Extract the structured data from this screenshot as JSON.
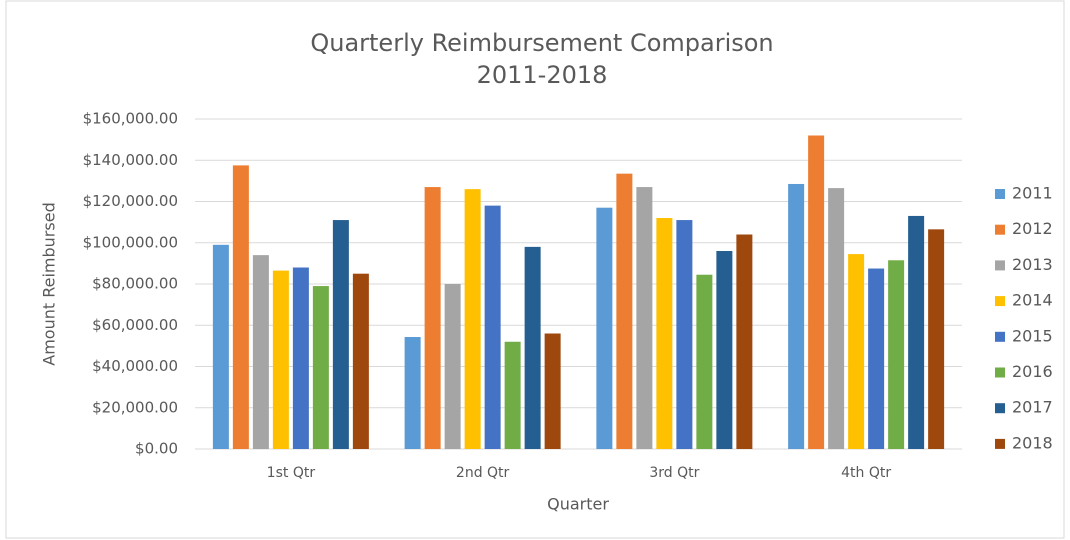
{
  "chart_data": {
    "type": "bar",
    "title": "Quarterly Reimbursement Comparison",
    "subtitle": "2011-2018",
    "x_label": "Quarter",
    "y_label": "Amount Reimbursed",
    "categories": [
      "1st Qtr",
      "2nd Qtr",
      "3rd Qtr",
      "4th Qtr"
    ],
    "series": [
      {
        "name": "2011",
        "color": "#5b9bd5",
        "values": [
          99000,
          54300,
          117000,
          128500
        ]
      },
      {
        "name": "2012",
        "color": "#ed7d31",
        "values": [
          137500,
          127000,
          133500,
          152000
        ]
      },
      {
        "name": "2013",
        "color": "#a5a5a5",
        "values": [
          94000,
          80000,
          127000,
          126500
        ]
      },
      {
        "name": "2014",
        "color": "#ffc000",
        "values": [
          86500,
          126000,
          112000,
          94500
        ]
      },
      {
        "name": "2015",
        "color": "#4472c4",
        "values": [
          88000,
          118000,
          111000,
          87500
        ]
      },
      {
        "name": "2016",
        "color": "#70ad47",
        "values": [
          79000,
          52000,
          84500,
          91500
        ]
      },
      {
        "name": "2017",
        "color": "#255e91",
        "values": [
          111000,
          98000,
          96000,
          113000
        ]
      },
      {
        "name": "2018",
        "color": "#9e480e",
        "values": [
          85000,
          56000,
          104000,
          106500
        ]
      }
    ],
    "ylim": [
      0,
      160000
    ],
    "yticks": [
      {
        "value": 0,
        "label": "$0.00"
      },
      {
        "value": 20000,
        "label": "$20,000.00"
      },
      {
        "value": 40000,
        "label": "$40,000.00"
      },
      {
        "value": 60000,
        "label": "$60,000.00"
      },
      {
        "value": 80000,
        "label": "$80,000.00"
      },
      {
        "value": 100000,
        "label": "$100,000.00"
      },
      {
        "value": 120000,
        "label": "$120,000.00"
      },
      {
        "value": 140000,
        "label": "$140,000.00"
      },
      {
        "value": 160000,
        "label": "$160,000.00"
      }
    ],
    "grid": true,
    "legend": "right"
  }
}
